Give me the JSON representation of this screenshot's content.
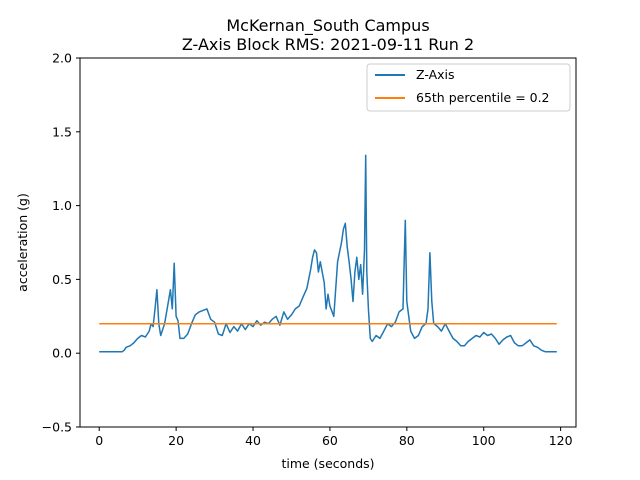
{
  "chart_data": {
    "type": "line",
    "title": "McKernan_South Campus",
    "subtitle": "Z-Axis Block RMS: 2021-09-11 Run 2",
    "xlabel": "time (seconds)",
    "ylabel": "acceleration (g)",
    "xlim": [
      -5,
      124
    ],
    "ylim": [
      -0.5,
      2.0
    ],
    "xticks": [
      0,
      20,
      40,
      60,
      80,
      100,
      120
    ],
    "yticks": [
      -0.5,
      0.0,
      0.5,
      1.0,
      1.5,
      2.0
    ],
    "xtick_labels": [
      "0",
      "20",
      "40",
      "60",
      "80",
      "100",
      "120"
    ],
    "ytick_labels": [
      "−0.5",
      "0.0",
      "0.5",
      "1.0",
      "1.5",
      "2.0"
    ],
    "grid": false,
    "legend_position": "top-right",
    "series": [
      {
        "name": "Z-Axis",
        "color": "#1f77b4",
        "x": [
          0,
          2,
          4,
          6,
          6.5,
          7,
          8,
          9,
          10,
          11,
          12,
          13,
          13.5,
          14,
          14.5,
          15,
          15.5,
          16,
          17,
          18,
          18.5,
          19,
          19.5,
          20,
          20.5,
          21,
          22,
          23,
          24,
          25,
          26,
          27,
          28,
          29,
          30,
          31,
          32,
          33,
          34,
          35,
          36,
          37,
          38,
          39,
          40,
          41,
          42,
          43,
          44,
          45,
          46,
          47,
          48,
          49,
          50,
          51,
          52,
          53,
          54,
          55,
          55.5,
          56,
          56.5,
          57,
          57.5,
          58,
          58.5,
          59,
          59.5,
          60,
          61,
          62,
          63,
          63.5,
          64,
          64.5,
          65,
          65.5,
          66,
          66.5,
          67,
          67.5,
          68,
          68.5,
          69,
          69.3,
          69.6,
          70,
          70.5,
          71,
          72,
          73,
          74,
          75,
          76,
          77,
          78,
          79,
          79.3,
          79.6,
          80,
          81,
          82,
          83,
          84,
          85,
          85.5,
          86,
          86.5,
          87,
          88,
          89,
          90,
          91,
          92,
          93,
          94,
          95,
          96,
          97,
          98,
          99,
          100,
          101,
          102,
          103,
          104,
          105,
          106,
          107,
          108,
          109,
          110,
          111,
          112,
          113,
          114,
          115,
          116,
          117,
          118,
          119
        ],
        "values": [
          0.01,
          0.01,
          0.01,
          0.01,
          0.02,
          0.04,
          0.05,
          0.07,
          0.1,
          0.12,
          0.11,
          0.15,
          0.2,
          0.18,
          0.3,
          0.43,
          0.2,
          0.12,
          0.2,
          0.35,
          0.43,
          0.3,
          0.61,
          0.25,
          0.22,
          0.1,
          0.1,
          0.13,
          0.2,
          0.26,
          0.28,
          0.29,
          0.3,
          0.23,
          0.21,
          0.13,
          0.12,
          0.2,
          0.14,
          0.18,
          0.15,
          0.2,
          0.16,
          0.2,
          0.18,
          0.22,
          0.19,
          0.21,
          0.2,
          0.23,
          0.25,
          0.19,
          0.28,
          0.23,
          0.26,
          0.3,
          0.32,
          0.38,
          0.44,
          0.57,
          0.65,
          0.7,
          0.68,
          0.55,
          0.62,
          0.55,
          0.48,
          0.3,
          0.4,
          0.32,
          0.25,
          0.62,
          0.75,
          0.84,
          0.88,
          0.72,
          0.62,
          0.5,
          0.35,
          0.55,
          0.65,
          0.5,
          0.6,
          0.4,
          0.7,
          1.34,
          0.55,
          0.3,
          0.1,
          0.08,
          0.12,
          0.1,
          0.15,
          0.2,
          0.18,
          0.21,
          0.28,
          0.3,
          0.6,
          0.9,
          0.35,
          0.15,
          0.1,
          0.12,
          0.18,
          0.2,
          0.3,
          0.68,
          0.35,
          0.2,
          0.18,
          0.15,
          0.2,
          0.15,
          0.1,
          0.08,
          0.05,
          0.05,
          0.08,
          0.1,
          0.12,
          0.11,
          0.14,
          0.12,
          0.13,
          0.1,
          0.06,
          0.09,
          0.11,
          0.12,
          0.07,
          0.05,
          0.05,
          0.07,
          0.09,
          0.05,
          0.04,
          0.02,
          0.01,
          0.01,
          0.01,
          0.01
        ]
      },
      {
        "name": "65th percentile = 0.2",
        "color": "#ff7f0e",
        "x": [
          0,
          119
        ],
        "values": [
          0.2,
          0.2
        ]
      }
    ]
  }
}
